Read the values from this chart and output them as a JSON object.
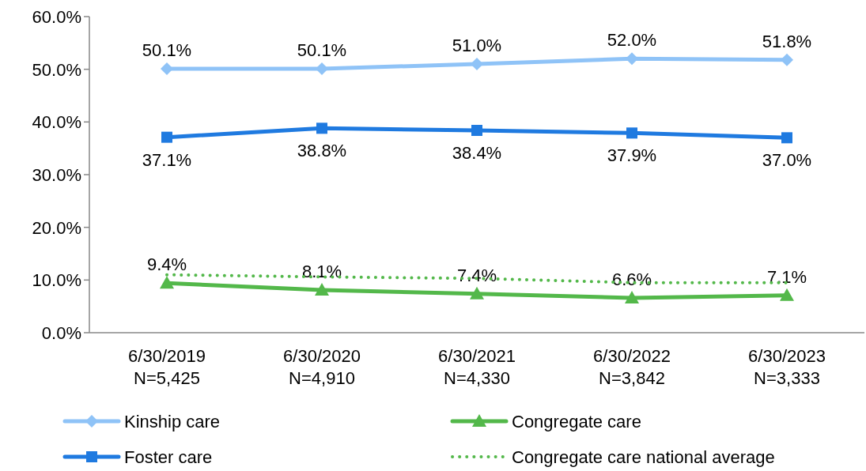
{
  "chart_data": {
    "type": "line",
    "categories": [
      "6/30/2019\nN=5,425",
      "6/30/2020\nN=4,910",
      "6/30/2021\nN=4,330",
      "6/30/2022\nN=3,842",
      "6/30/2023\nN=3,333"
    ],
    "ylim": [
      0,
      60
    ],
    "yticks": [
      {
        "value": 0,
        "label": "0.0%"
      },
      {
        "value": 10,
        "label": "10.0%"
      },
      {
        "value": 20,
        "label": "20.0%"
      },
      {
        "value": 30,
        "label": "30.0%"
      },
      {
        "value": 40,
        "label": "40.0%"
      },
      {
        "value": 50,
        "label": "50.0%"
      },
      {
        "value": 60,
        "label": "60.0%"
      }
    ],
    "grid": false,
    "legend": "bottom",
    "series": [
      {
        "name": "Kinship care",
        "color": "#8fc3f7",
        "marker": "diamond",
        "line_style": "solid",
        "values": [
          50.1,
          50.1,
          51.0,
          52.0,
          51.8
        ],
        "value_labels": [
          "50.1%",
          "50.1%",
          "51.0%",
          "52.0%",
          "51.8%"
        ]
      },
      {
        "name": "Foster care",
        "color": "#1f7ae0",
        "marker": "square",
        "line_style": "solid",
        "values": [
          37.1,
          38.8,
          38.4,
          37.9,
          37.0
        ],
        "value_labels": [
          "37.1%",
          "38.8%",
          "38.4%",
          "37.9%",
          "37.0%"
        ]
      },
      {
        "name": "Congregate care",
        "color": "#53b84a",
        "marker": "triangle",
        "line_style": "solid",
        "values": [
          9.4,
          8.1,
          7.4,
          6.6,
          7.1
        ],
        "value_labels": [
          "9.4%",
          "8.1%",
          "7.4%",
          "6.6%",
          "7.1%"
        ]
      },
      {
        "name": "Congregate care national average",
        "color": "#53b84a",
        "marker": "none",
        "line_style": "dotted",
        "values": [
          11.0,
          10.6,
          10.3,
          9.5,
          9.5
        ]
      }
    ]
  }
}
